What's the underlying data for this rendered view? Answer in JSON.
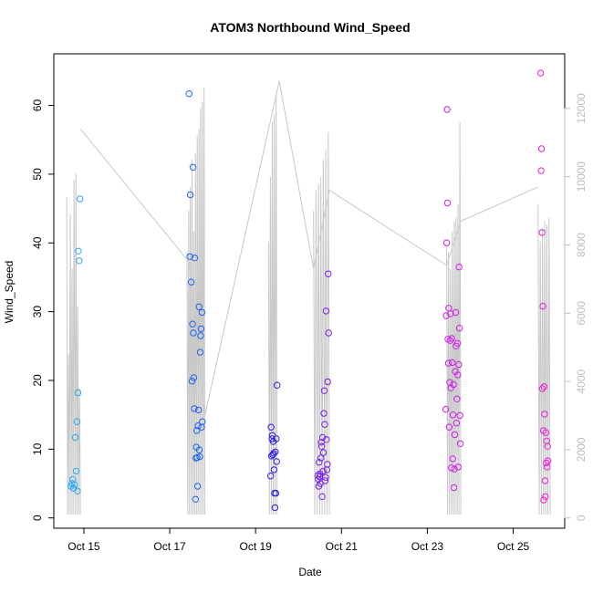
{
  "chart_data": {
    "type": "scatter",
    "title": "ATOM3 Northbound Wind_Speed",
    "xlabel": "Date",
    "ylabel": "Wind_Speed",
    "x_ticks": [
      "Oct 15",
      "Oct 17",
      "Oct 19",
      "Oct 21",
      "Oct 23",
      "Oct 25"
    ],
    "x_tick_days": [
      15,
      17,
      19,
      21,
      23,
      25
    ],
    "xlim_days": [
      14.3,
      26.2
    ],
    "y_ticks": [
      0,
      10,
      20,
      30,
      40,
      50,
      60
    ],
    "ylim": [
      -1.5,
      67.5
    ],
    "y2_ticks": [
      0,
      2000,
      4000,
      6000,
      8000,
      10000,
      12000
    ],
    "y2lim": [
      -300,
      13600
    ],
    "grid": false,
    "legend": "none",
    "colors": {
      "secondary_line": "#c8c8c8",
      "secondary_axis": "#bdbdbd",
      "point_colors": [
        "#29a9f0",
        "#1f64ea",
        "#2f1fe0",
        "#7a1fe6",
        "#cf1ee8",
        "#ec1fd6"
      ]
    },
    "points": [
      {
        "x": 14.7,
        "y": 4.6,
        "color": "#29a9f0"
      },
      {
        "x": 14.72,
        "y": 5.0,
        "color": "#29a9f0"
      },
      {
        "x": 14.74,
        "y": 5.6,
        "color": "#29a9f0"
      },
      {
        "x": 14.76,
        "y": 4.3,
        "color": "#29a9f0"
      },
      {
        "x": 14.78,
        "y": 4.8,
        "color": "#29a9f0"
      },
      {
        "x": 14.8,
        "y": 11.7,
        "color": "#29a9f0"
      },
      {
        "x": 14.82,
        "y": 6.8,
        "color": "#29a9f0"
      },
      {
        "x": 14.84,
        "y": 14.0,
        "color": "#29a9f0"
      },
      {
        "x": 14.85,
        "y": 3.9,
        "color": "#29a9f0"
      },
      {
        "x": 14.86,
        "y": 18.2,
        "color": "#29a9f0"
      },
      {
        "x": 14.87,
        "y": 38.8,
        "color": "#29a9f0"
      },
      {
        "x": 14.89,
        "y": 37.4,
        "color": "#29a9f0"
      },
      {
        "x": 14.91,
        "y": 46.4,
        "color": "#29a9f0"
      },
      {
        "x": 17.45,
        "y": 61.7,
        "color": "#1f64ea"
      },
      {
        "x": 17.47,
        "y": 38.0,
        "color": "#1f64ea"
      },
      {
        "x": 17.48,
        "y": 47.0,
        "color": "#1f64ea"
      },
      {
        "x": 17.5,
        "y": 34.3,
        "color": "#1f64ea"
      },
      {
        "x": 17.52,
        "y": 19.9,
        "color": "#1f64ea"
      },
      {
        "x": 17.53,
        "y": 28.2,
        "color": "#1f64ea"
      },
      {
        "x": 17.54,
        "y": 51.0,
        "color": "#1f64ea"
      },
      {
        "x": 17.55,
        "y": 26.9,
        "color": "#1f64ea"
      },
      {
        "x": 17.56,
        "y": 20.4,
        "color": "#1f64ea"
      },
      {
        "x": 17.57,
        "y": 15.9,
        "color": "#1f64ea"
      },
      {
        "x": 17.58,
        "y": 37.8,
        "color": "#1f64ea"
      },
      {
        "x": 17.6,
        "y": 2.7,
        "color": "#1f64ea"
      },
      {
        "x": 17.61,
        "y": 8.7,
        "color": "#1f64ea"
      },
      {
        "x": 17.62,
        "y": 10.3,
        "color": "#1f64ea"
      },
      {
        "x": 17.63,
        "y": 12.7,
        "color": "#1f64ea"
      },
      {
        "x": 17.64,
        "y": 8.8,
        "color": "#1f64ea"
      },
      {
        "x": 17.65,
        "y": 4.6,
        "color": "#1f64ea"
      },
      {
        "x": 17.66,
        "y": 13.4,
        "color": "#1f64ea"
      },
      {
        "x": 17.67,
        "y": 15.7,
        "color": "#1f64ea"
      },
      {
        "x": 17.68,
        "y": 30.7,
        "color": "#1f64ea"
      },
      {
        "x": 17.69,
        "y": 9.9,
        "color": "#1f64ea"
      },
      {
        "x": 17.7,
        "y": 8.9,
        "color": "#1f64ea"
      },
      {
        "x": 17.71,
        "y": 24.1,
        "color": "#1f64ea"
      },
      {
        "x": 17.72,
        "y": 26.5,
        "color": "#1f64ea"
      },
      {
        "x": 17.73,
        "y": 27.5,
        "color": "#1f64ea"
      },
      {
        "x": 17.74,
        "y": 13.2,
        "color": "#1f64ea"
      },
      {
        "x": 17.75,
        "y": 29.9,
        "color": "#1f64ea"
      },
      {
        "x": 17.76,
        "y": 14.0,
        "color": "#1f64ea"
      },
      {
        "x": 19.35,
        "y": 6.1,
        "color": "#2f1fe0"
      },
      {
        "x": 19.36,
        "y": 13.2,
        "color": "#2f1fe0"
      },
      {
        "x": 19.37,
        "y": 9.0,
        "color": "#2f1fe0"
      },
      {
        "x": 19.38,
        "y": 11.5,
        "color": "#2f1fe0"
      },
      {
        "x": 19.39,
        "y": 12.0,
        "color": "#2f1fe0"
      },
      {
        "x": 19.4,
        "y": 9.2,
        "color": "#2f1fe0"
      },
      {
        "x": 19.41,
        "y": 11.1,
        "color": "#2f1fe0"
      },
      {
        "x": 19.42,
        "y": 9.4,
        "color": "#2f1fe0"
      },
      {
        "x": 19.43,
        "y": 7.0,
        "color": "#2f1fe0"
      },
      {
        "x": 19.44,
        "y": 3.6,
        "color": "#2f1fe0"
      },
      {
        "x": 19.45,
        "y": 1.5,
        "color": "#2f1fe0"
      },
      {
        "x": 19.46,
        "y": 9.6,
        "color": "#2f1fe0"
      },
      {
        "x": 19.47,
        "y": 3.6,
        "color": "#2f1fe0"
      },
      {
        "x": 19.48,
        "y": 11.5,
        "color": "#2f1fe0"
      },
      {
        "x": 19.49,
        "y": 8.2,
        "color": "#2f1fe0"
      },
      {
        "x": 19.5,
        "y": 19.3,
        "color": "#2f1fe0"
      },
      {
        "x": 20.45,
        "y": 6.2,
        "color": "#7a1fe6"
      },
      {
        "x": 20.46,
        "y": 5.6,
        "color": "#7a1fe6"
      },
      {
        "x": 20.47,
        "y": 4.6,
        "color": "#7a1fe6"
      },
      {
        "x": 20.48,
        "y": 8.1,
        "color": "#7a1fe6"
      },
      {
        "x": 20.49,
        "y": 6.0,
        "color": "#7a1fe6"
      },
      {
        "x": 20.5,
        "y": 6.4,
        "color": "#7a1fe6"
      },
      {
        "x": 20.51,
        "y": 5.0,
        "color": "#7a1fe6"
      },
      {
        "x": 20.52,
        "y": 8.7,
        "color": "#7a1fe6"
      },
      {
        "x": 20.53,
        "y": 11.0,
        "color": "#7a1fe6"
      },
      {
        "x": 20.54,
        "y": 10.4,
        "color": "#7a1fe6"
      },
      {
        "x": 20.55,
        "y": 3.1,
        "color": "#7a1fe6"
      },
      {
        "x": 20.56,
        "y": 11.7,
        "color": "#7a1fe6"
      },
      {
        "x": 20.57,
        "y": 6.8,
        "color": "#7a1fe6"
      },
      {
        "x": 20.58,
        "y": 9.5,
        "color": "#7a1fe6"
      },
      {
        "x": 20.59,
        "y": 15.2,
        "color": "#7a1fe6"
      },
      {
        "x": 20.6,
        "y": 18.5,
        "color": "#7a1fe6"
      },
      {
        "x": 20.61,
        "y": 13.6,
        "color": "#7a1fe6"
      },
      {
        "x": 20.62,
        "y": 5.4,
        "color": "#7a1fe6"
      },
      {
        "x": 20.63,
        "y": 5.9,
        "color": "#7a1fe6"
      },
      {
        "x": 20.64,
        "y": 30.1,
        "color": "#7a1fe6"
      },
      {
        "x": 20.65,
        "y": 11.4,
        "color": "#7a1fe6"
      },
      {
        "x": 20.66,
        "y": 7.0,
        "color": "#7a1fe6"
      },
      {
        "x": 20.67,
        "y": 7.8,
        "color": "#7a1fe6"
      },
      {
        "x": 20.68,
        "y": 19.8,
        "color": "#7a1fe6"
      },
      {
        "x": 20.69,
        "y": 35.5,
        "color": "#7a1fe6"
      },
      {
        "x": 20.7,
        "y": 26.9,
        "color": "#7a1fe6"
      },
      {
        "x": 23.43,
        "y": 15.8,
        "color": "#cf1ee8"
      },
      {
        "x": 23.44,
        "y": 29.4,
        "color": "#cf1ee8"
      },
      {
        "x": 23.45,
        "y": 40.0,
        "color": "#cf1ee8"
      },
      {
        "x": 23.46,
        "y": 59.4,
        "color": "#cf1ee8"
      },
      {
        "x": 23.47,
        "y": 45.8,
        "color": "#cf1ee8"
      },
      {
        "x": 23.48,
        "y": 26.0,
        "color": "#cf1ee8"
      },
      {
        "x": 23.49,
        "y": 22.5,
        "color": "#cf1ee8"
      },
      {
        "x": 23.5,
        "y": 30.5,
        "color": "#cf1ee8"
      },
      {
        "x": 23.51,
        "y": 13.2,
        "color": "#cf1ee8"
      },
      {
        "x": 23.52,
        "y": 19.7,
        "color": "#cf1ee8"
      },
      {
        "x": 23.53,
        "y": 25.8,
        "color": "#cf1ee8"
      },
      {
        "x": 23.54,
        "y": 29.7,
        "color": "#cf1ee8"
      },
      {
        "x": 23.55,
        "y": 18.9,
        "color": "#cf1ee8"
      },
      {
        "x": 23.56,
        "y": 7.3,
        "color": "#cf1ee8"
      },
      {
        "x": 23.57,
        "y": 26.1,
        "color": "#cf1ee8"
      },
      {
        "x": 23.58,
        "y": 22.6,
        "color": "#cf1ee8"
      },
      {
        "x": 23.59,
        "y": 8.6,
        "color": "#cf1ee8"
      },
      {
        "x": 23.6,
        "y": 15.0,
        "color": "#cf1ee8"
      },
      {
        "x": 23.61,
        "y": 19.4,
        "color": "#cf1ee8"
      },
      {
        "x": 23.62,
        "y": 4.4,
        "color": "#cf1ee8"
      },
      {
        "x": 23.63,
        "y": 7.1,
        "color": "#cf1ee8"
      },
      {
        "x": 23.64,
        "y": 12.1,
        "color": "#cf1ee8"
      },
      {
        "x": 23.65,
        "y": 21.3,
        "color": "#cf1ee8"
      },
      {
        "x": 23.66,
        "y": 29.9,
        "color": "#cf1ee8"
      },
      {
        "x": 23.67,
        "y": 25.0,
        "color": "#cf1ee8"
      },
      {
        "x": 23.68,
        "y": 13.8,
        "color": "#cf1ee8"
      },
      {
        "x": 23.69,
        "y": 17.3,
        "color": "#cf1ee8"
      },
      {
        "x": 23.7,
        "y": 25.4,
        "color": "#cf1ee8"
      },
      {
        "x": 23.71,
        "y": 20.8,
        "color": "#cf1ee8"
      },
      {
        "x": 23.72,
        "y": 7.4,
        "color": "#cf1ee8"
      },
      {
        "x": 23.73,
        "y": 22.3,
        "color": "#cf1ee8"
      },
      {
        "x": 23.74,
        "y": 36.5,
        "color": "#cf1ee8"
      },
      {
        "x": 23.75,
        "y": 27.6,
        "color": "#cf1ee8"
      },
      {
        "x": 23.76,
        "y": 14.9,
        "color": "#cf1ee8"
      },
      {
        "x": 23.77,
        "y": 10.8,
        "color": "#cf1ee8"
      },
      {
        "x": 25.64,
        "y": 64.7,
        "color": "#ec1fd6"
      },
      {
        "x": 25.65,
        "y": 50.5,
        "color": "#ec1fd6"
      },
      {
        "x": 25.66,
        "y": 53.7,
        "color": "#ec1fd6"
      },
      {
        "x": 25.67,
        "y": 41.5,
        "color": "#ec1fd6"
      },
      {
        "x": 25.68,
        "y": 18.8,
        "color": "#ec1fd6"
      },
      {
        "x": 25.69,
        "y": 30.8,
        "color": "#ec1fd6"
      },
      {
        "x": 25.7,
        "y": 12.7,
        "color": "#ec1fd6"
      },
      {
        "x": 25.71,
        "y": 2.6,
        "color": "#ec1fd6"
      },
      {
        "x": 25.72,
        "y": 19.1,
        "color": "#ec1fd6"
      },
      {
        "x": 25.73,
        "y": 15.1,
        "color": "#ec1fd6"
      },
      {
        "x": 25.74,
        "y": 5.4,
        "color": "#ec1fd6"
      },
      {
        "x": 25.75,
        "y": 3.1,
        "color": "#ec1fd6"
      },
      {
        "x": 25.76,
        "y": 12.4,
        "color": "#ec1fd6"
      },
      {
        "x": 25.77,
        "y": 8.0,
        "color": "#ec1fd6"
      },
      {
        "x": 25.78,
        "y": 11.2,
        "color": "#ec1fd6"
      },
      {
        "x": 25.79,
        "y": 7.4,
        "color": "#ec1fd6"
      },
      {
        "x": 25.8,
        "y": 10.4,
        "color": "#ec1fd6"
      },
      {
        "x": 25.81,
        "y": 8.3,
        "color": "#ec1fd6"
      }
    ],
    "secondary_bursts": [
      {
        "x0": 14.6,
        "x1": 14.92,
        "highs": [
          9400,
          4800,
          8900,
          7300,
          9900,
          10100,
          6200,
          3800
        ],
        "low": 100
      },
      {
        "x0": 17.4,
        "x1": 17.82,
        "highs": [
          7800,
          9000,
          9700,
          10500,
          8400,
          10700,
          11200,
          11400,
          12000,
          12200,
          12600
        ],
        "low": 100
      },
      {
        "x0": 19.3,
        "x1": 19.5,
        "highs": [
          8100,
          10000,
          11600,
          11800,
          12400
        ],
        "low": 100
      },
      {
        "x0": 20.35,
        "x1": 20.72,
        "highs": [
          9000,
          9600,
          9800,
          10000,
          10500,
          10800,
          11300
        ],
        "low": 100
      },
      {
        "x0": 23.45,
        "x1": 23.78,
        "highs": [
          8000,
          7800,
          7300,
          8400,
          8700,
          8800,
          9200,
          11600
        ],
        "low": 100
      },
      {
        "x0": 25.58,
        "x1": 25.86,
        "highs": [
          9200,
          8100,
          8500,
          8700,
          8600,
          8800
        ],
        "low": 100
      }
    ],
    "secondary_connectors": [
      [
        [
          14.92,
          11400
        ],
        [
          17.45,
          7500
        ],
        [
          17.82,
          3000
        ],
        [
          19.55,
          12800
        ],
        [
          20.35,
          7300
        ],
        [
          20.72,
          9600
        ],
        [
          23.45,
          7400
        ],
        [
          23.78,
          8700
        ],
        [
          25.58,
          9700
        ]
      ]
    ]
  }
}
